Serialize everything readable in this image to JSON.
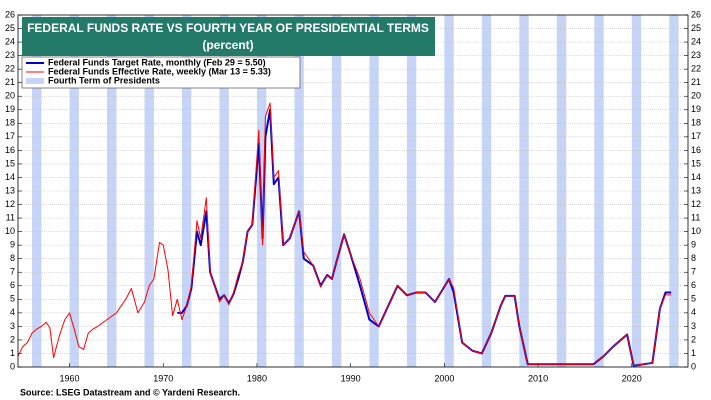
{
  "chart_data": {
    "type": "line",
    "title": "FEDERAL FUNDS RATE VS FOURTH YEAR OF PRESIDENTIAL TERMS",
    "subtitle": "(percent)",
    "source": "Source: LSEG Datastream and © Yardeni Research.",
    "xlim": [
      1954.5,
      2026
    ],
    "xticks": [
      1960,
      1970,
      1980,
      1990,
      2000,
      2010,
      2020
    ],
    "ylim": [
      0,
      26
    ],
    "yticks": [
      0,
      1,
      2,
      3,
      4,
      5,
      6,
      7,
      8,
      9,
      10,
      11,
      12,
      13,
      14,
      15,
      16,
      17,
      18,
      19,
      20,
      21,
      22,
      23,
      24,
      25,
      26
    ],
    "y2lim": [
      0,
      26
    ],
    "y2ticks": [
      0,
      1,
      2,
      3,
      4,
      5,
      6,
      7,
      8,
      9,
      10,
      11,
      12,
      13,
      14,
      15,
      16,
      17,
      18,
      19,
      20,
      21,
      22,
      23,
      24,
      25,
      26
    ],
    "grid": true,
    "bands": {
      "name": "Fourth Term of Presidents",
      "color": "#c6d4f7",
      "years": [
        1956,
        1960,
        1964,
        1968,
        1972,
        1976,
        1980,
        1984,
        1988,
        1992,
        1996,
        2000,
        2004,
        2008,
        2012,
        2016,
        2020,
        2024
      ]
    },
    "x": [
      1954.5,
      1955,
      1955.5,
      1956,
      1956.5,
      1957,
      1957.5,
      1957.9,
      1958.3,
      1958.6,
      1959,
      1959.5,
      1960,
      1960.5,
      1961,
      1961.5,
      1962,
      1962.5,
      1963,
      1964,
      1965,
      1966,
      1966.6,
      1967.3,
      1968,
      1968.5,
      1969,
      1969.6,
      1970,
      1970.5,
      1971,
      1971.5,
      1972,
      1972.5,
      1973,
      1973.6,
      1974,
      1974.6,
      1975,
      1975.5,
      1976,
      1976.5,
      1977,
      1977.5,
      1978,
      1978.5,
      1979,
      1979.5,
      1980.2,
      1980.6,
      1980.9,
      1981.4,
      1981.8,
      1982.3,
      1982.8,
      1983.5,
      1984.5,
      1985,
      1986,
      1986.8,
      1987.5,
      1988,
      1988.5,
      1989.3,
      1990,
      1991,
      1992,
      1993,
      1994,
      1995,
      1996,
      1997,
      1998,
      1999,
      2000.5,
      2001,
      2001.9,
      2003,
      2004,
      2005,
      2006,
      2006.5,
      2007.5,
      2008,
      2008.9,
      2015.9,
      2017,
      2018,
      2019.5,
      2020.2,
      2022.2,
      2023,
      2023.6,
      2024.2
    ],
    "series": [
      {
        "name": "Federal Funds Target Rate, monthly (Feb 29 = 5.50)",
        "color": "#0000cc",
        "values": [
          null,
          null,
          null,
          null,
          null,
          null,
          null,
          null,
          null,
          null,
          null,
          null,
          null,
          null,
          null,
          null,
          null,
          null,
          null,
          null,
          null,
          null,
          null,
          null,
          null,
          null,
          null,
          null,
          null,
          null,
          null,
          4.0,
          4.0,
          4.5,
          5.8,
          10.0,
          9.0,
          11.5,
          7.0,
          6.0,
          5.0,
          5.3,
          4.7,
          5.4,
          6.5,
          7.8,
          10.0,
          10.5,
          16.5,
          9.5,
          17.0,
          19.0,
          13.5,
          14.0,
          9.0,
          9.5,
          11.5,
          8.0,
          7.5,
          6.0,
          6.8,
          6.5,
          7.8,
          9.8,
          8.3,
          6.0,
          3.5,
          3.0,
          4.5,
          6.0,
          5.3,
          5.5,
          5.5,
          4.8,
          6.5,
          5.5,
          1.8,
          1.2,
          1.0,
          2.5,
          4.5,
          5.25,
          5.25,
          3.0,
          0.2,
          0.2,
          0.8,
          1.5,
          2.4,
          0.1,
          0.3,
          4.3,
          5.5,
          5.5
        ]
      },
      {
        "name": "Federal Funds Effective Rate, weekly (Mar 13 = 5.33)",
        "color": "#ff0000",
        "values": [
          0.8,
          1.5,
          1.8,
          2.5,
          2.8,
          3.0,
          3.3,
          2.9,
          0.7,
          1.5,
          2.5,
          3.5,
          4.0,
          2.8,
          1.5,
          1.3,
          2.5,
          2.8,
          3.0,
          3.5,
          4.0,
          5.0,
          5.8,
          4.0,
          4.8,
          6.0,
          6.5,
          9.2,
          9.0,
          7.2,
          3.8,
          5.0,
          3.5,
          4.5,
          6.0,
          10.8,
          9.5,
          12.5,
          7.0,
          6.0,
          4.8,
          5.3,
          4.6,
          5.5,
          6.8,
          7.8,
          10.0,
          10.5,
          17.5,
          9.0,
          18.5,
          19.5,
          14.0,
          14.5,
          9.0,
          9.5,
          11.5,
          8.5,
          7.5,
          5.9,
          6.8,
          6.5,
          7.8,
          9.8,
          8.3,
          6.5,
          4.0,
          3.0,
          4.5,
          6.0,
          5.3,
          5.5,
          5.5,
          4.8,
          6.5,
          5.8,
          1.8,
          1.2,
          1.0,
          2.5,
          4.5,
          5.25,
          5.25,
          3.0,
          0.2,
          0.2,
          0.8,
          1.5,
          2.4,
          0.1,
          0.3,
          4.3,
          5.33,
          5.33
        ]
      }
    ]
  }
}
